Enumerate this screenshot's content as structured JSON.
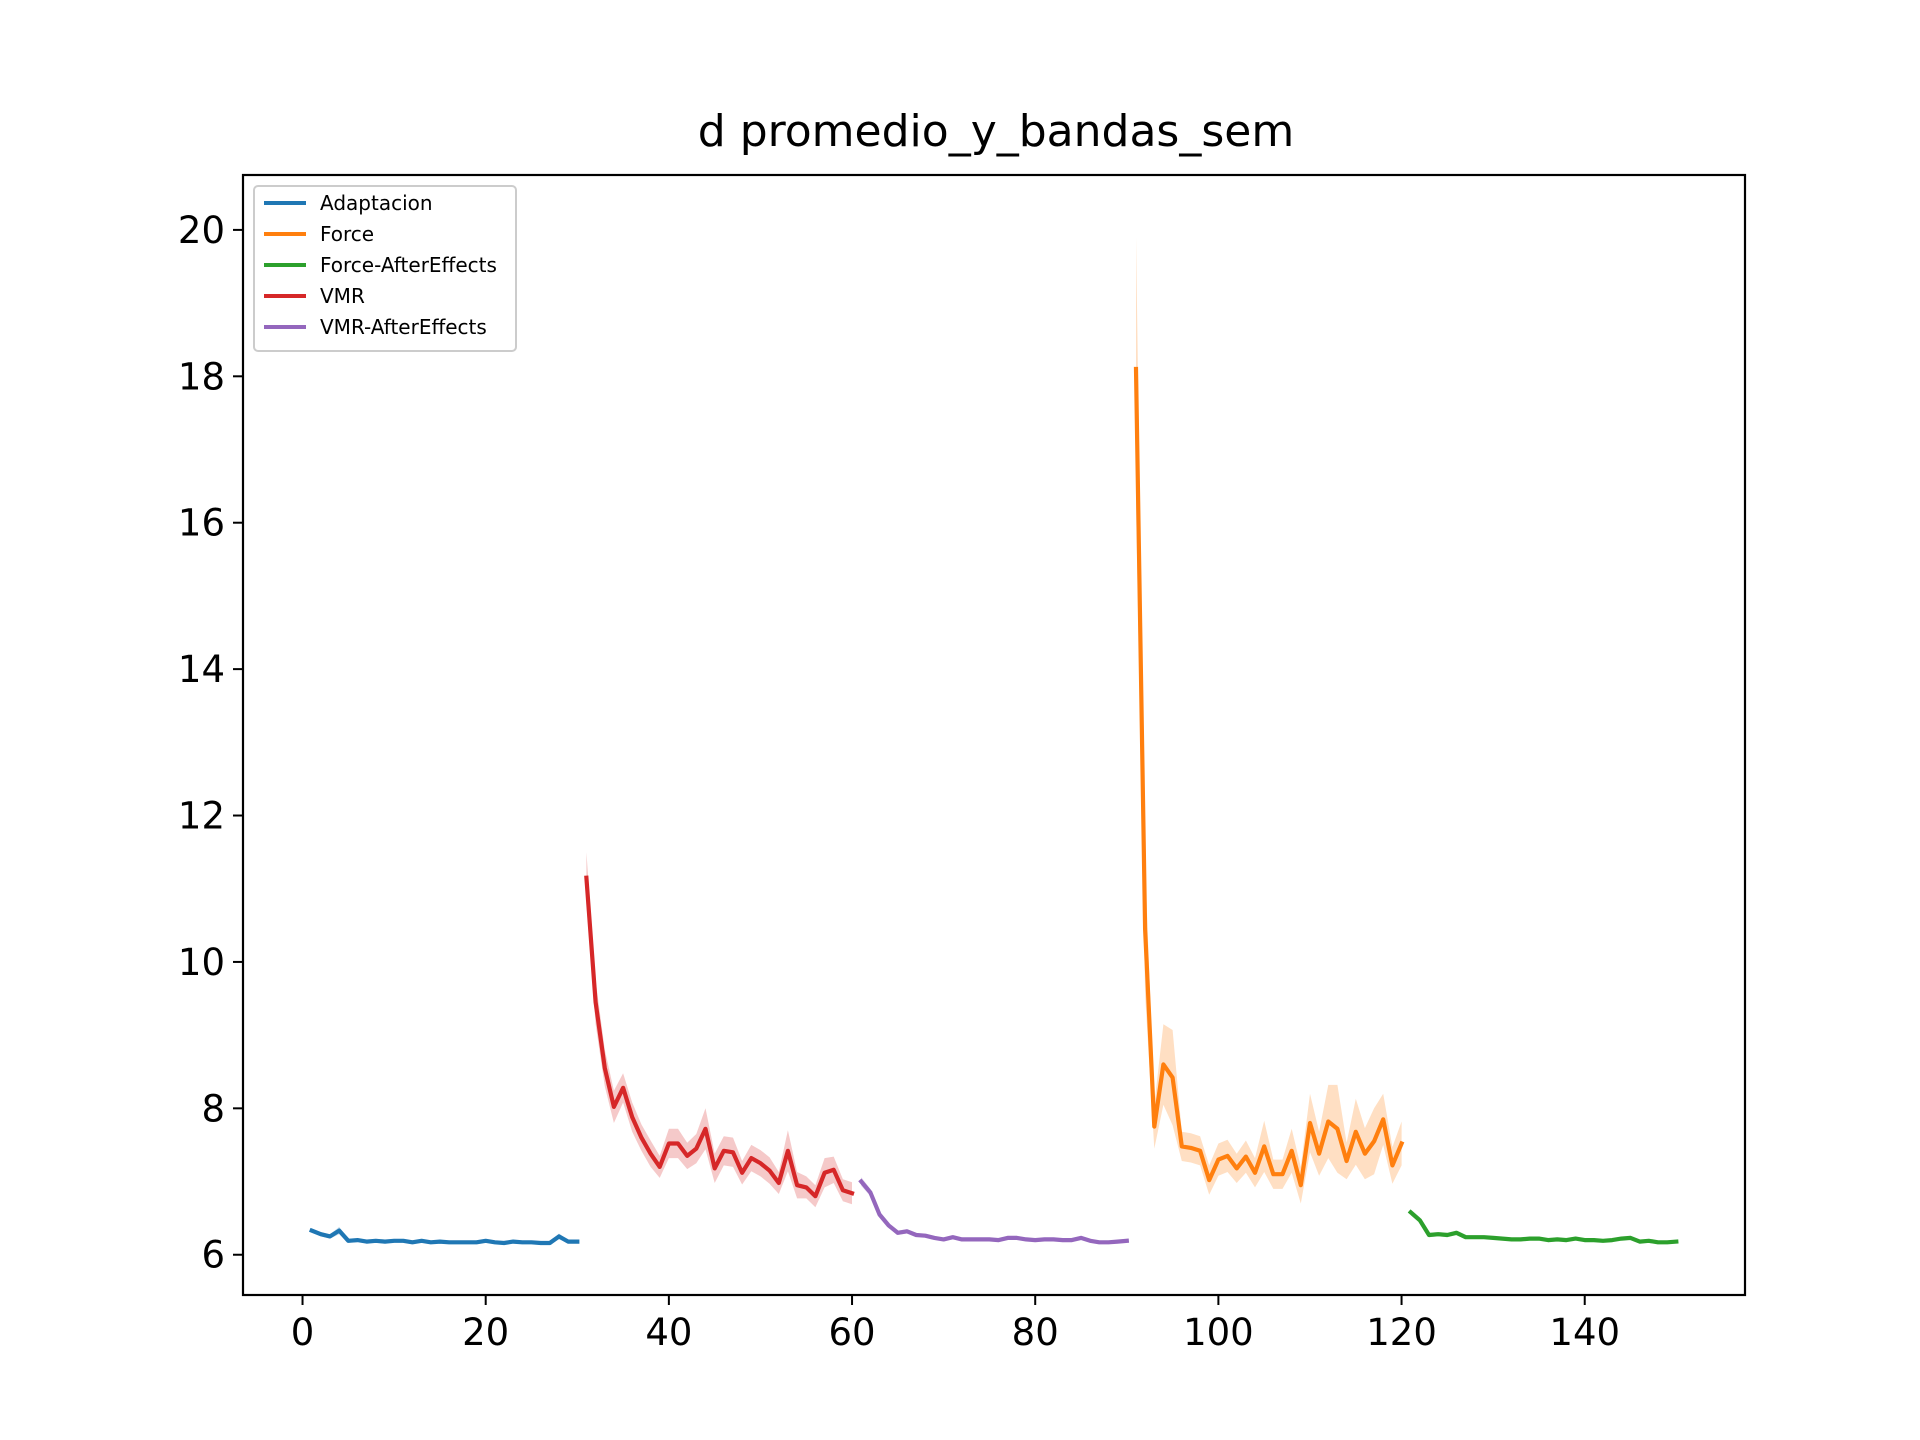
{
  "chart_data": {
    "type": "line",
    "title": "d promedio_y_bandas_sem",
    "xlabel": "",
    "ylabel": "",
    "xlim": [
      -6.5,
      157.5
    ],
    "ylim": [
      5.45,
      20.75
    ],
    "xticks": [
      0,
      20,
      40,
      60,
      80,
      100,
      120,
      140
    ],
    "yticks": [
      6,
      8,
      10,
      12,
      14,
      16,
      18,
      20
    ],
    "xtick_labels": [
      "0",
      "20",
      "40",
      "60",
      "80",
      "100",
      "120",
      "140"
    ],
    "ytick_labels": [
      "6",
      "8",
      "10",
      "12",
      "14",
      "16",
      "18",
      "20"
    ],
    "legend_position": "upper-left",
    "grid": false,
    "series": [
      {
        "name": "Adaptacion",
        "color": "#1f77b4",
        "x_start": 1,
        "values": [
          6.33,
          6.28,
          6.25,
          6.33,
          6.19,
          6.2,
          6.18,
          6.19,
          6.18,
          6.19,
          6.19,
          6.17,
          6.19,
          6.17,
          6.18,
          6.17,
          6.17,
          6.17,
          6.17,
          6.19,
          6.17,
          6.16,
          6.18,
          6.17,
          6.17,
          6.16,
          6.16,
          6.25,
          6.18,
          6.18
        ],
        "band": [
          0.03,
          0.03,
          0.03,
          0.05,
          0.03,
          0.02,
          0.02,
          0.02,
          0.02,
          0.02,
          0.02,
          0.02,
          0.02,
          0.02,
          0.02,
          0.02,
          0.02,
          0.02,
          0.02,
          0.02,
          0.02,
          0.02,
          0.02,
          0.02,
          0.02,
          0.02,
          0.02,
          0.04,
          0.02,
          0.02
        ]
      },
      {
        "name": "VMR",
        "color": "#d62728",
        "x_start": 31,
        "values": [
          11.15,
          9.45,
          8.55,
          8.02,
          8.28,
          7.88,
          7.6,
          7.38,
          7.2,
          7.52,
          7.52,
          7.35,
          7.45,
          7.72,
          7.18,
          7.42,
          7.4,
          7.12,
          7.32,
          7.25,
          7.15,
          6.98,
          7.42,
          6.95,
          6.92,
          6.8,
          7.12,
          7.16,
          6.88,
          6.84
        ],
        "band": [
          0.35,
          0.3,
          0.25,
          0.22,
          0.2,
          0.2,
          0.18,
          0.18,
          0.15,
          0.2,
          0.2,
          0.18,
          0.2,
          0.28,
          0.2,
          0.2,
          0.2,
          0.16,
          0.18,
          0.18,
          0.18,
          0.15,
          0.28,
          0.18,
          0.15,
          0.15,
          0.2,
          0.18,
          0.15,
          0.15
        ]
      },
      {
        "name": "VMR-AfterEffects",
        "color": "#9467bd",
        "x_start": 61,
        "values": [
          7.0,
          6.85,
          6.55,
          6.4,
          6.3,
          6.32,
          6.27,
          6.26,
          6.23,
          6.21,
          6.24,
          6.21,
          6.21,
          6.21,
          6.21,
          6.2,
          6.23,
          6.23,
          6.21,
          6.2,
          6.21,
          6.21,
          6.2,
          6.2,
          6.23,
          6.19,
          6.17,
          6.17,
          6.18,
          6.19
        ],
        "band": [
          0.06,
          0.05,
          0.04,
          0.03,
          0.03,
          0.03,
          0.02,
          0.02,
          0.02,
          0.02,
          0.02,
          0.02,
          0.02,
          0.02,
          0.02,
          0.02,
          0.02,
          0.02,
          0.02,
          0.02,
          0.02,
          0.02,
          0.02,
          0.02,
          0.02,
          0.02,
          0.02,
          0.02,
          0.02,
          0.02
        ]
      },
      {
        "name": "Force",
        "color": "#ff7f0e",
        "x_start": 91,
        "values": [
          18.1,
          10.45,
          7.75,
          8.6,
          8.42,
          7.48,
          7.46,
          7.42,
          7.02,
          7.3,
          7.35,
          7.18,
          7.34,
          7.12,
          7.48,
          7.1,
          7.1,
          7.42,
          6.95,
          7.8,
          7.38,
          7.82,
          7.72,
          7.28,
          7.68,
          7.38,
          7.55,
          7.85,
          7.22,
          7.52
        ],
        "band": [
          1.8,
          0.9,
          0.3,
          0.55,
          0.65,
          0.2,
          0.2,
          0.2,
          0.2,
          0.22,
          0.22,
          0.2,
          0.22,
          0.2,
          0.35,
          0.2,
          0.2,
          0.3,
          0.25,
          0.4,
          0.3,
          0.5,
          0.6,
          0.25,
          0.45,
          0.35,
          0.45,
          0.35,
          0.25,
          0.3
        ]
      },
      {
        "name": "Force-AfterEffects",
        "color": "#2ca02c",
        "x_start": 121,
        "values": [
          6.58,
          6.47,
          6.27,
          6.28,
          6.27,
          6.3,
          6.24,
          6.24,
          6.24,
          6.23,
          6.22,
          6.21,
          6.21,
          6.22,
          6.22,
          6.2,
          6.21,
          6.2,
          6.22,
          6.2,
          6.2,
          6.19,
          6.2,
          6.22,
          6.23,
          6.18,
          6.19,
          6.17,
          6.17,
          6.18
        ],
        "band": [
          0.04,
          0.04,
          0.03,
          0.03,
          0.03,
          0.03,
          0.02,
          0.02,
          0.02,
          0.02,
          0.02,
          0.02,
          0.02,
          0.02,
          0.02,
          0.02,
          0.02,
          0.02,
          0.02,
          0.02,
          0.02,
          0.02,
          0.02,
          0.02,
          0.02,
          0.02,
          0.02,
          0.02,
          0.02,
          0.02
        ]
      }
    ],
    "legend_order": [
      "Adaptacion",
      "Force",
      "Force-AfterEffects",
      "VMR",
      "VMR-AfterEffects"
    ]
  }
}
